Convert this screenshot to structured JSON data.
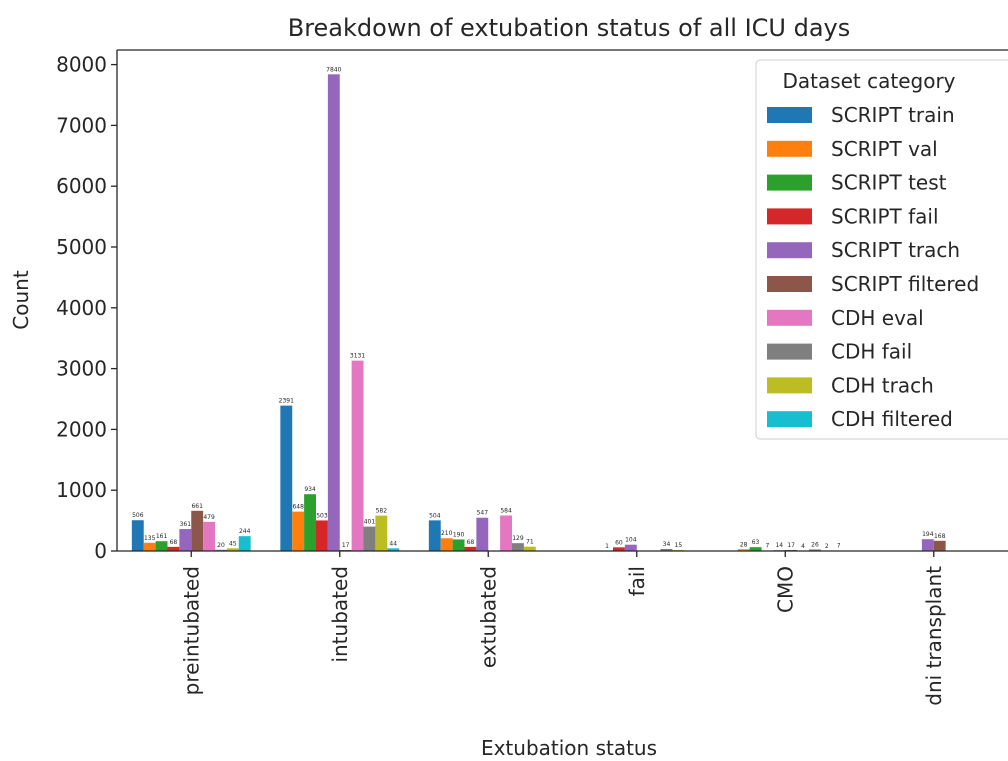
{
  "chart_data": {
    "type": "bar",
    "title": "Breakdown of extubation status of all ICU days",
    "xlabel": "Extubation status",
    "ylabel": "Count",
    "ylim": [
      0,
      8240
    ],
    "yticks": [
      0,
      1000,
      2000,
      3000,
      4000,
      5000,
      6000,
      7000,
      8000
    ],
    "grid": false,
    "legend_placement": "top-right",
    "legend_title": "Dataset category",
    "categories": [
      "preintubated",
      "intubated",
      "extubated",
      "fail",
      "CMO",
      "dni transplant"
    ],
    "series": [
      {
        "name": "SCRIPT train",
        "color": "#1f77b4",
        "values": [
          506,
          2391,
          504,
          0,
          0,
          0
        ],
        "labels": [
          "506",
          "2391",
          "504",
          "",
          "",
          ""
        ]
      },
      {
        "name": "SCRIPT val",
        "color": "#ff7f0e",
        "values": [
          135,
          648,
          210,
          0,
          28,
          0
        ],
        "labels": [
          "135",
          "648",
          "210",
          "",
          "28",
          ""
        ]
      },
      {
        "name": "SCRIPT test",
        "color": "#2ca02c",
        "values": [
          161,
          934,
          190,
          1,
          63,
          0
        ],
        "labels": [
          "161",
          "934",
          "190",
          "1",
          "63",
          ""
        ]
      },
      {
        "name": "SCRIPT fail",
        "color": "#d62728",
        "values": [
          68,
          503,
          68,
          60,
          7,
          0
        ],
        "labels": [
          "68",
          "503",
          "68",
          "60",
          "7",
          ""
        ]
      },
      {
        "name": "SCRIPT trach",
        "color": "#9467bd",
        "values": [
          361,
          7840,
          547,
          104,
          14,
          194
        ],
        "labels": [
          "361",
          "7840",
          "547",
          "104",
          "14",
          "194"
        ]
      },
      {
        "name": "SCRIPT filtered",
        "color": "#8c564b",
        "values": [
          661,
          17,
          0,
          0,
          17,
          168
        ],
        "labels": [
          "661",
          "17",
          "",
          "",
          "17",
          "168"
        ]
      },
      {
        "name": "CDH eval",
        "color": "#e377c2",
        "values": [
          479,
          3131,
          584,
          0,
          4,
          0
        ],
        "labels": [
          "479",
          "3131",
          "584",
          "",
          "4",
          ""
        ]
      },
      {
        "name": "CDH fail",
        "color": "#7f7f7f",
        "values": [
          20,
          401,
          129,
          34,
          26,
          0
        ],
        "labels": [
          "20",
          "401",
          "129",
          "34",
          "26",
          ""
        ]
      },
      {
        "name": "CDH trach",
        "color": "#bcbd22",
        "values": [
          45,
          582,
          71,
          15,
          2,
          0
        ],
        "labels": [
          "45",
          "582",
          "71",
          "15",
          "2",
          ""
        ]
      },
      {
        "name": "CDH filtered",
        "color": "#17becf",
        "values": [
          244,
          44,
          0,
          0,
          7,
          0
        ],
        "labels": [
          "244",
          "44",
          "",
          "",
          "7",
          ""
        ]
      }
    ]
  }
}
